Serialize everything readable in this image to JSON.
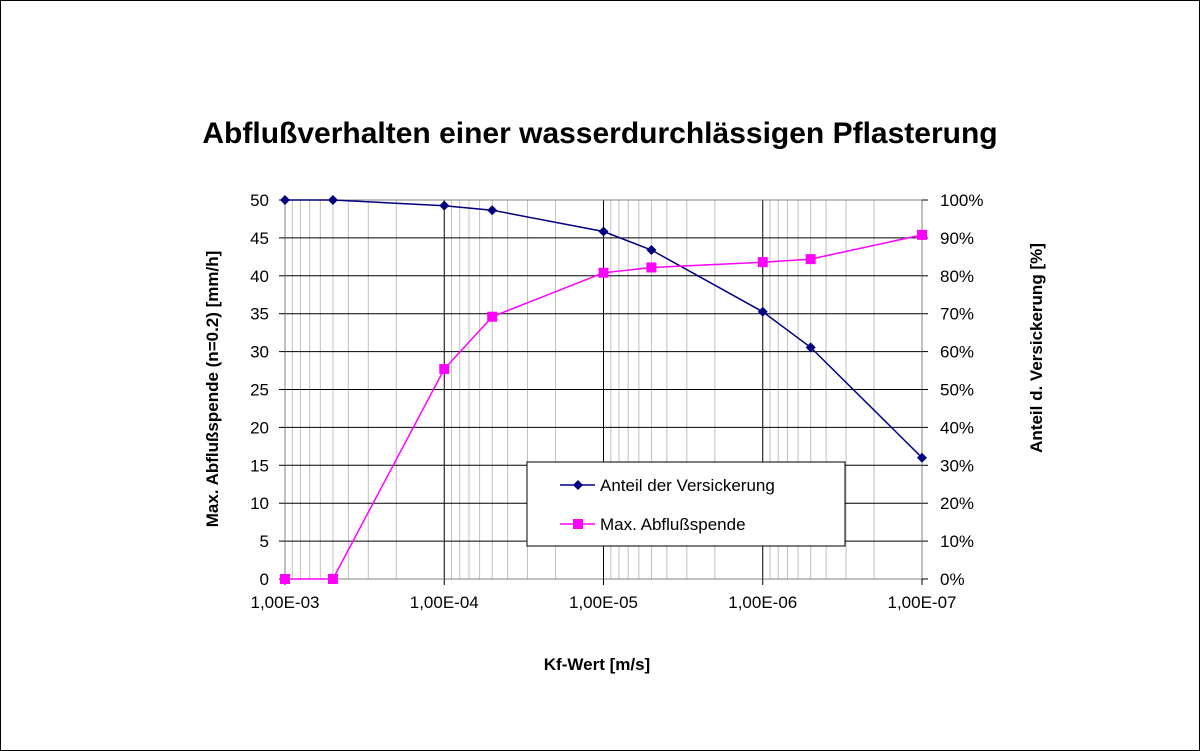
{
  "chart_data": {
    "type": "line",
    "title": "Abflußverhalten einer wasserdurchlässigen Pflasterung",
    "xlabel": "Kf-Wert [m/s]",
    "ylabel": "Max. Abflußspende (n=0.2) [mm/h]",
    "y2label": "Anteil d. Versickerung [%]",
    "x_scale": "log",
    "x_reversed": true,
    "xlim": [
      0.001,
      1e-07
    ],
    "x_ticks": [
      0.001,
      0.0001,
      1e-05,
      1e-06,
      1e-07
    ],
    "x_tick_labels": [
      "1,00E-03",
      "1,00E-04",
      "1,00E-05",
      "1,00E-06",
      "1,00E-07"
    ],
    "ylim": [
      0,
      50
    ],
    "y_ticks": [
      0,
      5,
      10,
      15,
      20,
      25,
      30,
      35,
      40,
      45,
      50
    ],
    "y_tick_labels": [
      "0",
      "5",
      "10",
      "15",
      "20",
      "25",
      "30",
      "35",
      "40",
      "45",
      "50"
    ],
    "y2lim": [
      0,
      100
    ],
    "y2_ticks": [
      0,
      10,
      20,
      30,
      40,
      50,
      60,
      70,
      80,
      90,
      100
    ],
    "y2_tick_labels": [
      "0%",
      "10%",
      "20%",
      "30%",
      "40%",
      "50%",
      "60%",
      "70%",
      "80%",
      "90%",
      "100%"
    ],
    "grid": true,
    "legend_position": "lower-right",
    "series": [
      {
        "name": "Anteil der Versickerung",
        "axis": "right",
        "color": "#000080",
        "marker": "diamond",
        "x": [
          0.001,
          0.0005,
          0.0001,
          5e-05,
          1e-05,
          5e-06,
          1e-06,
          5e-07,
          1e-07
        ],
        "values": [
          100,
          100,
          98.5,
          97.3,
          91.7,
          86.8,
          70.5,
          61.1,
          32
        ]
      },
      {
        "name": "Max. Abflußspende",
        "axis": "left",
        "color": "#FF00FF",
        "marker": "square",
        "x": [
          0.001,
          0.0005,
          0.0001,
          5e-05,
          1e-05,
          5e-06,
          1e-06,
          5e-07,
          1e-07
        ],
        "values": [
          0,
          0,
          27.7,
          34.6,
          40.4,
          41.1,
          41.8,
          42.2,
          45.4
        ]
      }
    ]
  }
}
